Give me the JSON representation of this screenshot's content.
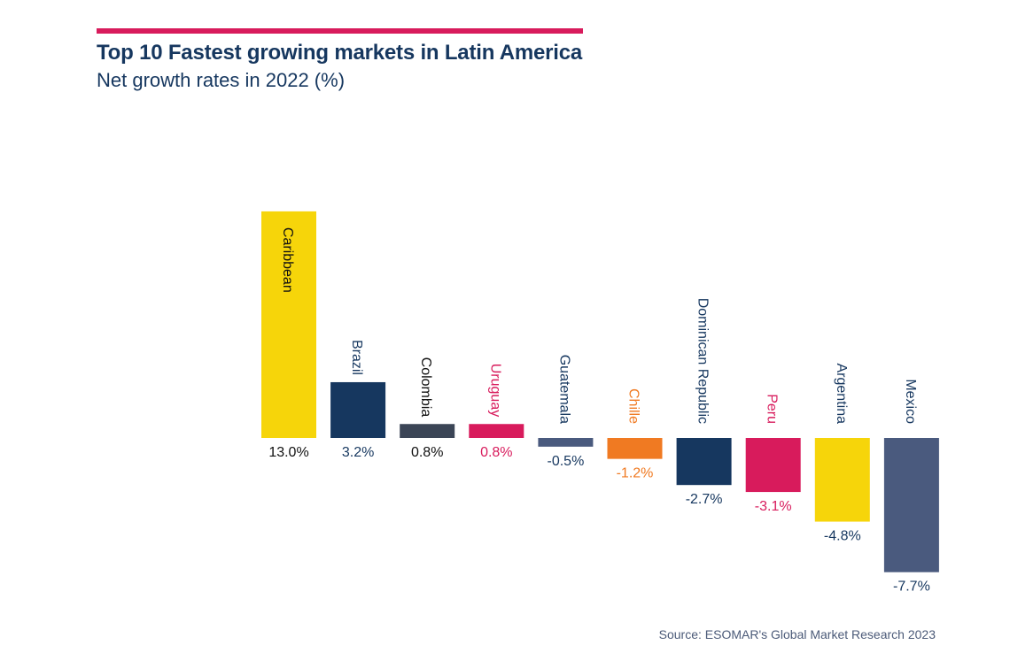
{
  "title": "Top 10 Fastest growing markets in Latin America",
  "subtitle": "Net growth rates in 2022 (%)",
  "source": "Source: ESOMAR's Global Market Research 2023",
  "colors": {
    "accent": "#d81b5c",
    "title": "#16375f"
  },
  "chart_data": {
    "type": "bar",
    "title": "Top 10 Fastest growing markets in Latin America",
    "subtitle": "Net growth rates in 2022 (%)",
    "xlabel": "",
    "ylabel": "",
    "ylim": [
      -7.7,
      13.0
    ],
    "grid": false,
    "categories": [
      "Caribbean",
      "Brazil",
      "Colombia",
      "Uruguay",
      "Guatemala",
      "Chille",
      "Dominican Republic",
      "Peru",
      "Argentina",
      "Mexico"
    ],
    "values": [
      13.0,
      3.2,
      0.8,
      0.8,
      -0.5,
      -1.2,
      -2.7,
      -3.1,
      -4.8,
      -7.7
    ],
    "value_labels": [
      "13.0%",
      "3.2%",
      "0.8%",
      "0.8%",
      "-0.5%",
      "-1.2%",
      "-2.7%",
      "-3.1%",
      "-4.8%",
      "-7.7%"
    ],
    "bar_colors": [
      "#f6d50a",
      "#16375f",
      "#3b4556",
      "#d81b5c",
      "#4a5a7e",
      "#f07a22",
      "#16375f",
      "#d81b5c",
      "#f6d50a",
      "#4a5a7e"
    ],
    "label_colors": [
      "#111111",
      "#16375f",
      "#111111",
      "#d81b5c",
      "#16375f",
      "#f07a22",
      "#16375f",
      "#d81b5c",
      "#16375f",
      "#16375f"
    ]
  }
}
